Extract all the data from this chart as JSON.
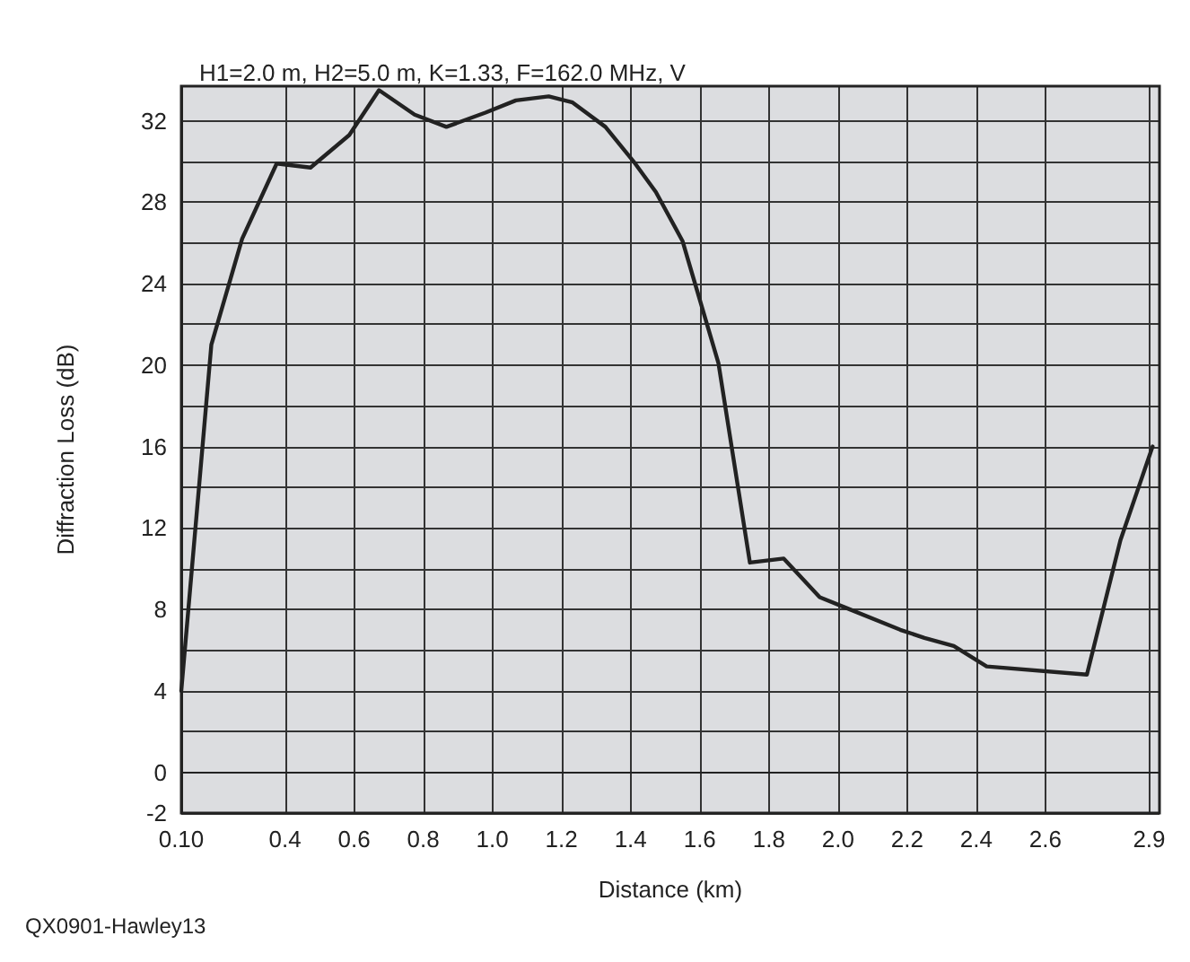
{
  "chart_data": {
    "type": "line",
    "title": "H1=2.0 m, H2=5.0 m, K=1.33, F=162.0 MHz, V",
    "xlabel": "Distance (km)",
    "ylabel": "Diffraction Loss (dB)",
    "annotations": [
      "QX0901-Hawley13"
    ],
    "x": [
      0.1,
      0.187,
      0.276,
      0.376,
      0.474,
      0.586,
      0.672,
      0.775,
      0.867,
      0.98,
      1.068,
      1.163,
      1.232,
      1.327,
      1.413,
      1.473,
      1.55,
      1.654,
      1.745,
      1.843,
      1.947,
      2.02,
      2.18,
      2.25,
      2.335,
      2.43,
      2.72,
      2.817,
      2.91
    ],
    "series": [
      {
        "color": "#222222",
        "values": [
          4,
          21,
          26.2,
          29.9,
          29.7,
          31.3,
          33.5,
          32.3,
          31.7,
          32.4,
          33,
          33.2,
          32.9,
          31.7,
          29.9,
          28.5,
          26.1,
          20.1,
          10.3,
          10.5,
          8.6,
          8.1,
          7,
          6.6,
          6.2,
          5.2,
          4.8,
          11.4,
          16
        ]
      }
    ],
    "xlim": [
      0.1,
      2.93
    ],
    "xticks": [
      {
        "value": 0.1,
        "label": "0.10"
      },
      0.4,
      0.6,
      0.8,
      {
        "value": 1.0,
        "label": "1.0"
      },
      1.2,
      1.4,
      1.6,
      1.8,
      {
        "value": 2.0,
        "label": "2.0"
      },
      2.2,
      2.4,
      2.6,
      2.9
    ],
    "ylim": [
      -2,
      33.7
    ],
    "yticks": [
      -2,
      0,
      {
        "value": 2,
        "label": null
      },
      4,
      {
        "value": 6,
        "label": null
      },
      8,
      {
        "value": 10,
        "label": null
      },
      12,
      {
        "value": 14,
        "label": null
      },
      16,
      {
        "value": 18,
        "label": null
      },
      20,
      {
        "value": 22,
        "label": null
      },
      24,
      {
        "value": 26,
        "label": null
      },
      28,
      {
        "value": 30,
        "label": null
      },
      32
    ],
    "grid": true,
    "line_style": "solid"
  }
}
